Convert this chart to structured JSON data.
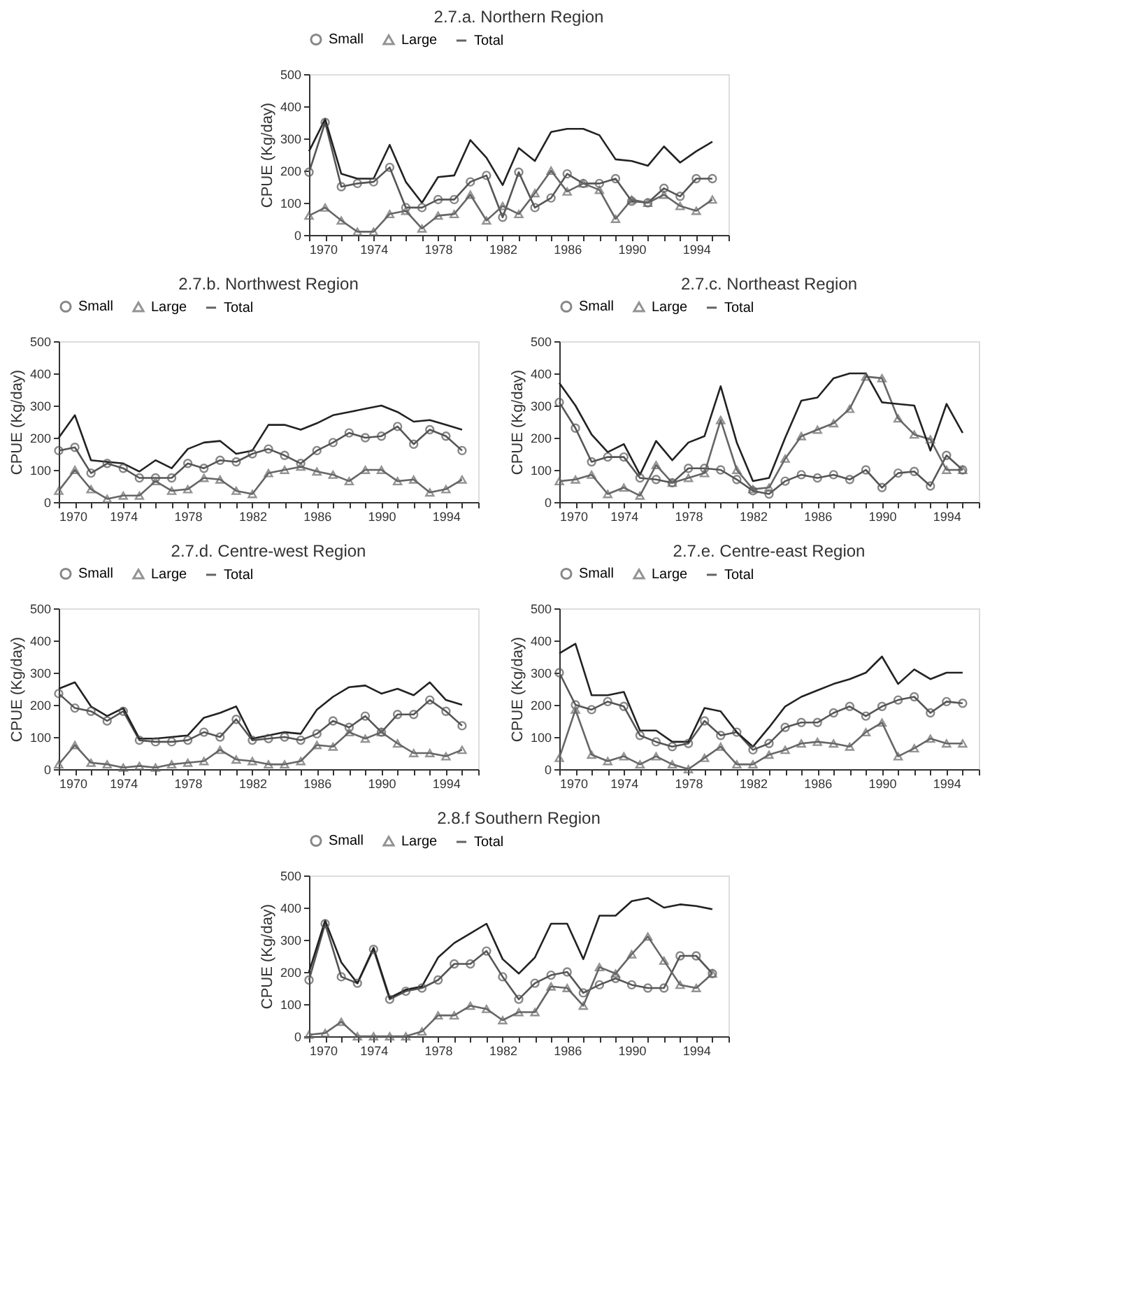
{
  "chart_data": [
    {
      "type": "line",
      "title": "2.7.a. Northern Region",
      "ylabel": "CPUE (Kg/day)",
      "legend": "top",
      "line_style": "solid",
      "x": [
        1970,
        1971,
        1972,
        1973,
        1974,
        1975,
        1976,
        1977,
        1978,
        1979,
        1980,
        1981,
        1982,
        1983,
        1984,
        1985,
        1986,
        1987,
        1988,
        1989,
        1990,
        1991,
        1992,
        1993,
        1994,
        1995
      ],
      "xlim": [
        1970,
        1996
      ],
      "xticks": [
        1970,
        {
          "value": 1971,
          "label": null
        },
        {
          "value": 1972,
          "label": null
        },
        {
          "value": 1973,
          "label": null
        },
        1974,
        {
          "value": 1975,
          "label": null
        },
        {
          "value": 1976,
          "label": null
        },
        {
          "value": 1977,
          "label": null
        },
        1978,
        {
          "value": 1979,
          "label": null
        },
        {
          "value": 1980,
          "label": null
        },
        {
          "value": 1981,
          "label": null
        },
        1982,
        {
          "value": 1983,
          "label": null
        },
        {
          "value": 1984,
          "label": null
        },
        {
          "value": 1985,
          "label": null
        },
        1986,
        {
          "value": 1987,
          "label": null
        },
        {
          "value": 1988,
          "label": null
        },
        {
          "value": 1989,
          "label": null
        },
        1990,
        {
          "value": 1991,
          "label": null
        },
        {
          "value": 1992,
          "label": null
        },
        {
          "value": 1993,
          "label": null
        },
        1994,
        {
          "value": 1995,
          "label": null
        },
        {
          "value": 1996,
          "label": null
        }
      ],
      "ylim": [
        0,
        500
      ],
      "yticks": [
        0,
        100,
        200,
        300,
        400,
        500
      ],
      "series": [
        {
          "name": "Small",
          "color": "#555555",
          "marker": "circle",
          "values": [
            195,
            350,
            150,
            160,
            165,
            210,
            85,
            85,
            110,
            110,
            165,
            185,
            55,
            195,
            85,
            115,
            190,
            160,
            160,
            175,
            105,
            100,
            145,
            120,
            175,
            175
          ]
        },
        {
          "name": "Large",
          "color": "#666666",
          "marker": "triangle",
          "values": [
            60,
            85,
            45,
            10,
            10,
            65,
            75,
            20,
            60,
            65,
            125,
            45,
            90,
            65,
            130,
            200,
            135,
            160,
            140,
            50,
            110,
            100,
            125,
            90,
            75,
            110
          ]
        },
        {
          "name": "Total",
          "color": "#222222",
          "marker": "none",
          "values": [
            260,
            360,
            190,
            175,
            175,
            280,
            165,
            100,
            180,
            185,
            295,
            240,
            155,
            270,
            230,
            320,
            330,
            330,
            310,
            235,
            230,
            215,
            275,
            225,
            260,
            290
          ]
        }
      ]
    },
    {
      "type": "line",
      "title": "2.7.b. Northwest Region",
      "ylabel": "CPUE (Kg/day)",
      "legend": "top",
      "line_style": "solid",
      "x": [
        1970,
        1971,
        1972,
        1973,
        1974,
        1975,
        1976,
        1977,
        1978,
        1979,
        1980,
        1981,
        1982,
        1983,
        1984,
        1985,
        1986,
        1987,
        1988,
        1989,
        1990,
        1991,
        1992,
        1993,
        1994,
        1995
      ],
      "xlim": [
        1970,
        1996
      ],
      "xticks": [
        1970,
        {
          "value": 1971,
          "label": null
        },
        {
          "value": 1972,
          "label": null
        },
        {
          "value": 1973,
          "label": null
        },
        1974,
        {
          "value": 1975,
          "label": null
        },
        {
          "value": 1976,
          "label": null
        },
        {
          "value": 1977,
          "label": null
        },
        1978,
        {
          "value": 1979,
          "label": null
        },
        {
          "value": 1980,
          "label": null
        },
        {
          "value": 1981,
          "label": null
        },
        1982,
        {
          "value": 1983,
          "label": null
        },
        {
          "value": 1984,
          "label": null
        },
        {
          "value": 1985,
          "label": null
        },
        1986,
        {
          "value": 1987,
          "label": null
        },
        {
          "value": 1988,
          "label": null
        },
        {
          "value": 1989,
          "label": null
        },
        1990,
        {
          "value": 1991,
          "label": null
        },
        {
          "value": 1992,
          "label": null
        },
        {
          "value": 1993,
          "label": null
        },
        1994,
        {
          "value": 1995,
          "label": null
        },
        {
          "value": 1996,
          "label": null
        }
      ],
      "ylim": [
        0,
        500
      ],
      "yticks": [
        0,
        100,
        200,
        300,
        400,
        500
      ],
      "series": [
        {
          "name": "Small",
          "color": "#555555",
          "marker": "circle",
          "values": [
            160,
            170,
            90,
            120,
            105,
            75,
            75,
            75,
            120,
            105,
            130,
            125,
            150,
            165,
            145,
            120,
            160,
            185,
            215,
            200,
            205,
            235,
            180,
            225,
            205,
            160
          ]
        },
        {
          "name": "Large",
          "color": "#666666",
          "marker": "triangle",
          "values": [
            35,
            100,
            40,
            10,
            20,
            20,
            65,
            35,
            40,
            75,
            70,
            35,
            25,
            90,
            100,
            110,
            95,
            85,
            65,
            100,
            100,
            65,
            70,
            30,
            40,
            70
          ]
        },
        {
          "name": "Total",
          "color": "#222222",
          "marker": "none",
          "values": [
            200,
            270,
            130,
            125,
            120,
            95,
            130,
            105,
            165,
            185,
            190,
            150,
            160,
            240,
            240,
            225,
            245,
            270,
            280,
            290,
            300,
            280,
            250,
            255,
            240,
            225
          ]
        }
      ]
    },
    {
      "type": "line",
      "title": "2.7.c. Northeast Region",
      "ylabel": "CPUE (Kg/day)",
      "legend": "top",
      "line_style": "solid",
      "x": [
        1970,
        1971,
        1972,
        1973,
        1974,
        1975,
        1976,
        1977,
        1978,
        1979,
        1980,
        1981,
        1982,
        1983,
        1984,
        1985,
        1986,
        1987,
        1988,
        1989,
        1990,
        1991,
        1992,
        1993,
        1994,
        1995
      ],
      "xlim": [
        1970,
        1996
      ],
      "xticks": [
        1970,
        {
          "value": 1971,
          "label": null
        },
        {
          "value": 1972,
          "label": null
        },
        {
          "value": 1973,
          "label": null
        },
        1974,
        {
          "value": 1975,
          "label": null
        },
        {
          "value": 1976,
          "label": null
        },
        {
          "value": 1977,
          "label": null
        },
        1978,
        {
          "value": 1979,
          "label": null
        },
        {
          "value": 1980,
          "label": null
        },
        {
          "value": 1981,
          "label": null
        },
        1982,
        {
          "value": 1983,
          "label": null
        },
        {
          "value": 1984,
          "label": null
        },
        {
          "value": 1985,
          "label": null
        },
        1986,
        {
          "value": 1987,
          "label": null
        },
        {
          "value": 1988,
          "label": null
        },
        {
          "value": 1989,
          "label": null
        },
        1990,
        {
          "value": 1991,
          "label": null
        },
        {
          "value": 1992,
          "label": null
        },
        {
          "value": 1993,
          "label": null
        },
        1994,
        {
          "value": 1995,
          "label": null
        },
        {
          "value": 1996,
          "label": null
        }
      ],
      "ylim": [
        0,
        500
      ],
      "yticks": [
        0,
        100,
        200,
        300,
        400,
        500
      ],
      "series": [
        {
          "name": "Small",
          "color": "#555555",
          "marker": "circle",
          "values": [
            310,
            230,
            125,
            140,
            140,
            75,
            70,
            60,
            105,
            105,
            100,
            70,
            35,
            25,
            65,
            85,
            75,
            85,
            70,
            100,
            45,
            90,
            95,
            50,
            145,
            100
          ]
        },
        {
          "name": "Large",
          "color": "#666666",
          "marker": "triangle",
          "values": [
            65,
            70,
            85,
            25,
            45,
            20,
            115,
            60,
            75,
            90,
            255,
            100,
            40,
            45,
            135,
            205,
            225,
            245,
            290,
            390,
            385,
            260,
            210,
            195,
            100,
            100
          ]
        },
        {
          "name": "Total",
          "color": "#222222",
          "marker": "none",
          "values": [
            370,
            300,
            210,
            155,
            180,
            85,
            190,
            130,
            185,
            205,
            360,
            185,
            65,
            75,
            200,
            315,
            325,
            385,
            400,
            400,
            310,
            305,
            300,
            160,
            305,
            215
          ]
        }
      ]
    },
    {
      "type": "line",
      "title": "2.7.d. Centre-west Region",
      "ylabel": "CPUE (Kg/day)",
      "legend": "top",
      "line_style": "solid",
      "x": [
        1970,
        1971,
        1972,
        1973,
        1974,
        1975,
        1976,
        1977,
        1978,
        1979,
        1980,
        1981,
        1982,
        1983,
        1984,
        1985,
        1986,
        1987,
        1988,
        1989,
        1990,
        1991,
        1992,
        1993,
        1994,
        1995
      ],
      "xlim": [
        1970,
        1996
      ],
      "xticks": [
        1970,
        {
          "value": 1971,
          "label": null
        },
        {
          "value": 1972,
          "label": null
        },
        {
          "value": 1973,
          "label": null
        },
        1974,
        {
          "value": 1975,
          "label": null
        },
        {
          "value": 1976,
          "label": null
        },
        {
          "value": 1977,
          "label": null
        },
        1978,
        {
          "value": 1979,
          "label": null
        },
        {
          "value": 1980,
          "label": null
        },
        {
          "value": 1981,
          "label": null
        },
        1982,
        {
          "value": 1983,
          "label": null
        },
        {
          "value": 1984,
          "label": null
        },
        {
          "value": 1985,
          "label": null
        },
        1986,
        {
          "value": 1987,
          "label": null
        },
        {
          "value": 1988,
          "label": null
        },
        {
          "value": 1989,
          "label": null
        },
        1990,
        {
          "value": 1991,
          "label": null
        },
        {
          "value": 1992,
          "label": null
        },
        {
          "value": 1993,
          "label": null
        },
        1994,
        {
          "value": 1995,
          "label": null
        },
        {
          "value": 1996,
          "label": null
        }
      ],
      "ylim": [
        0,
        500
      ],
      "yticks": [
        0,
        100,
        200,
        300,
        400,
        500
      ],
      "series": [
        {
          "name": "Small",
          "color": "#555555",
          "marker": "circle",
          "values": [
            235,
            190,
            180,
            150,
            180,
            90,
            85,
            85,
            90,
            115,
            100,
            155,
            90,
            95,
            100,
            90,
            110,
            150,
            130,
            165,
            115,
            170,
            170,
            215,
            180,
            135
          ]
        },
        {
          "name": "Large",
          "color": "#666666",
          "marker": "triangle",
          "values": [
            15,
            75,
            20,
            15,
            5,
            10,
            5,
            15,
            20,
            25,
            60,
            30,
            25,
            15,
            15,
            25,
            75,
            70,
            115,
            95,
            115,
            80,
            50,
            50,
            40,
            60
          ]
        },
        {
          "name": "Total",
          "color": "#222222",
          "marker": "none",
          "values": [
            250,
            270,
            195,
            165,
            190,
            95,
            95,
            100,
            105,
            160,
            175,
            195,
            95,
            105,
            115,
            110,
            185,
            225,
            255,
            260,
            235,
            250,
            230,
            270,
            215,
            200
          ]
        }
      ]
    },
    {
      "type": "line",
      "title": "2.7.e. Centre-east Region",
      "ylabel": "CPUE (Kg/day)",
      "legend": "top",
      "line_style": "solid",
      "x": [
        1970,
        1971,
        1972,
        1973,
        1974,
        1975,
        1976,
        1977,
        1978,
        1979,
        1980,
        1981,
        1982,
        1983,
        1984,
        1985,
        1986,
        1987,
        1988,
        1989,
        1990,
        1991,
        1992,
        1993,
        1994,
        1995
      ],
      "xlim": [
        1970,
        1996
      ],
      "xticks": [
        1970,
        {
          "value": 1971,
          "label": null
        },
        {
          "value": 1972,
          "label": null
        },
        {
          "value": 1973,
          "label": null
        },
        1974,
        {
          "value": 1975,
          "label": null
        },
        {
          "value": 1976,
          "label": null
        },
        {
          "value": 1977,
          "label": null
        },
        1978,
        {
          "value": 1979,
          "label": null
        },
        {
          "value": 1980,
          "label": null
        },
        {
          "value": 1981,
          "label": null
        },
        1982,
        {
          "value": 1983,
          "label": null
        },
        {
          "value": 1984,
          "label": null
        },
        {
          "value": 1985,
          "label": null
        },
        1986,
        {
          "value": 1987,
          "label": null
        },
        {
          "value": 1988,
          "label": null
        },
        {
          "value": 1989,
          "label": null
        },
        1990,
        {
          "value": 1991,
          "label": null
        },
        {
          "value": 1992,
          "label": null
        },
        {
          "value": 1993,
          "label": null
        },
        1994,
        {
          "value": 1995,
          "label": null
        },
        {
          "value": 1996,
          "label": null
        }
      ],
      "ylim": [
        0,
        500
      ],
      "yticks": [
        0,
        100,
        200,
        300,
        400,
        500
      ],
      "series": [
        {
          "name": "Small",
          "color": "#555555",
          "marker": "circle",
          "values": [
            300,
            200,
            185,
            210,
            195,
            105,
            85,
            70,
            80,
            150,
            105,
            115,
            60,
            80,
            130,
            145,
            145,
            175,
            195,
            165,
            195,
            215,
            225,
            175,
            210,
            205
          ]
        },
        {
          "name": "Large",
          "color": "#666666",
          "marker": "triangle",
          "values": [
            35,
            185,
            45,
            25,
            40,
            15,
            40,
            15,
            0,
            35,
            70,
            15,
            15,
            45,
            60,
            80,
            85,
            80,
            70,
            115,
            145,
            40,
            65,
            95,
            80,
            80
          ]
        },
        {
          "name": "Total",
          "color": "#222222",
          "marker": "none",
          "values": [
            360,
            390,
            230,
            230,
            240,
            120,
            120,
            85,
            85,
            190,
            180,
            115,
            70,
            130,
            195,
            225,
            245,
            265,
            280,
            300,
            350,
            265,
            310,
            280,
            300,
            300
          ]
        }
      ]
    },
    {
      "type": "line",
      "title": "2.8.f Southern Region",
      "ylabel": "CPUE (Kg/day)",
      "legend": "top",
      "line_style": "solid",
      "x": [
        1970,
        1971,
        1972,
        1973,
        1974,
        1975,
        1976,
        1977,
        1978,
        1979,
        1980,
        1981,
        1982,
        1983,
        1984,
        1985,
        1986,
        1987,
        1988,
        1989,
        1990,
        1991,
        1992,
        1993,
        1994,
        1995
      ],
      "xlim": [
        1970,
        1996
      ],
      "xticks": [
        1970,
        {
          "value": 1971,
          "label": null
        },
        {
          "value": 1972,
          "label": null
        },
        {
          "value": 1973,
          "label": null
        },
        1974,
        {
          "value": 1975,
          "label": null
        },
        {
          "value": 1976,
          "label": null
        },
        {
          "value": 1977,
          "label": null
        },
        1978,
        {
          "value": 1979,
          "label": null
        },
        {
          "value": 1980,
          "label": null
        },
        {
          "value": 1981,
          "label": null
        },
        1982,
        {
          "value": 1983,
          "label": null
        },
        {
          "value": 1984,
          "label": null
        },
        {
          "value": 1985,
          "label": null
        },
        1986,
        {
          "value": 1987,
          "label": null
        },
        {
          "value": 1988,
          "label": null
        },
        {
          "value": 1989,
          "label": null
        },
        1990,
        {
          "value": 1991,
          "label": null
        },
        {
          "value": 1992,
          "label": null
        },
        {
          "value": 1993,
          "label": null
        },
        1994,
        {
          "value": 1995,
          "label": null
        },
        {
          "value": 1996,
          "label": null
        }
      ],
      "ylim": [
        0,
        500
      ],
      "yticks": [
        0,
        100,
        200,
        300,
        400,
        500
      ],
      "series": [
        {
          "name": "Small",
          "color": "#555555",
          "marker": "circle",
          "values": [
            175,
            350,
            185,
            165,
            270,
            115,
            140,
            150,
            175,
            225,
            225,
            265,
            185,
            115,
            165,
            190,
            200,
            135,
            160,
            180,
            160,
            150,
            150,
            250,
            250,
            195
          ]
        },
        {
          "name": "Large",
          "color": "#666666",
          "marker": "triangle",
          "values": [
            5,
            10,
            45,
            0,
            0,
            0,
            0,
            15,
            65,
            65,
            95,
            85,
            50,
            75,
            75,
            155,
            150,
            95,
            215,
            195,
            255,
            310,
            235,
            160,
            150,
            195
          ]
        },
        {
          "name": "Total",
          "color": "#222222",
          "marker": "none",
          "values": [
            200,
            360,
            230,
            165,
            275,
            120,
            145,
            155,
            245,
            290,
            320,
            350,
            240,
            195,
            245,
            350,
            350,
            240,
            375,
            375,
            420,
            430,
            400,
            410,
            405,
            395
          ]
        }
      ]
    }
  ]
}
